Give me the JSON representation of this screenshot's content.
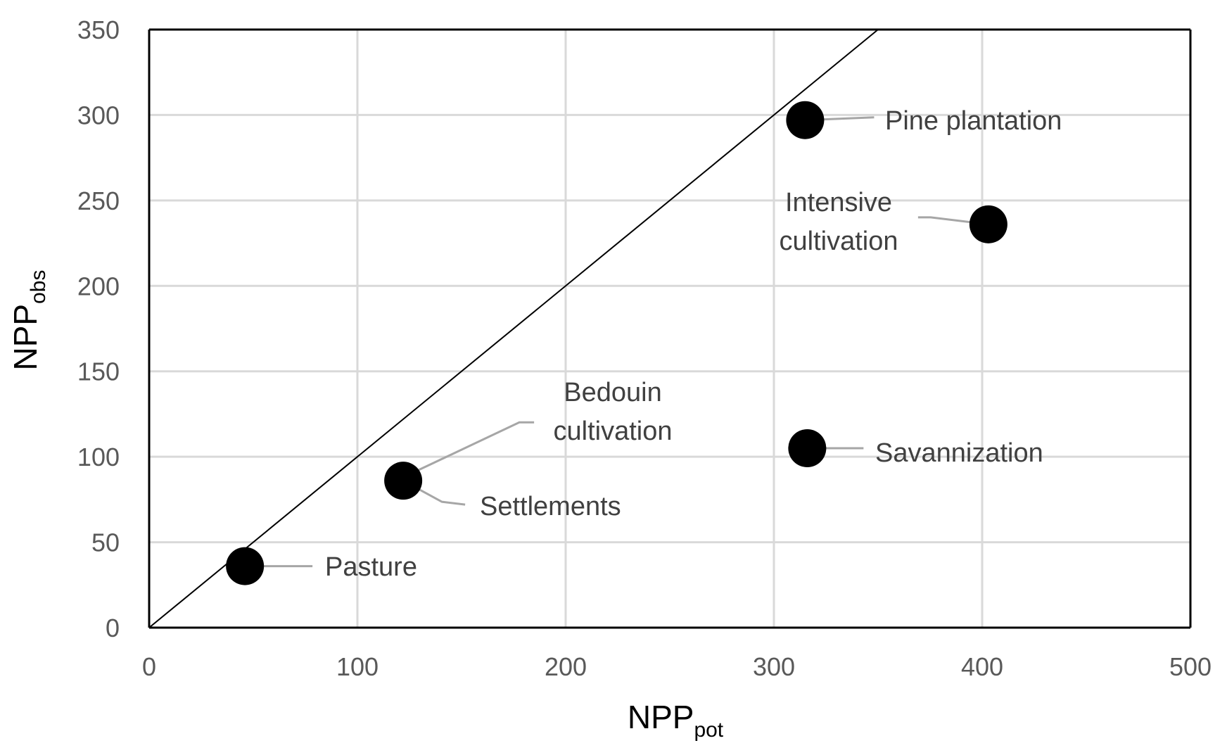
{
  "chart_data": {
    "type": "scatter",
    "xlabel": {
      "main": "NPP",
      "sub": "pot"
    },
    "ylabel": {
      "main": "NPP",
      "sub": "obs"
    },
    "xlim": [
      0,
      500
    ],
    "ylim": [
      0,
      350
    ],
    "xticks": [
      0,
      100,
      200,
      300,
      400,
      500
    ],
    "yticks": [
      0,
      50,
      100,
      150,
      200,
      250,
      300,
      350
    ],
    "grid": true,
    "reference_line": {
      "from": [
        0,
        0
      ],
      "to": [
        350,
        350
      ]
    },
    "points": [
      {
        "label": "Pasture",
        "x": 46,
        "y": 36
      },
      {
        "label": "Settlements",
        "x": 122,
        "y": 86
      },
      {
        "label": "Bedouin\ncultivation",
        "x": 122,
        "y": 88
      },
      {
        "label": "Pine plantation",
        "x": 315,
        "y": 297
      },
      {
        "label": "Intensive\ncultivation",
        "x": 403,
        "y": 236
      },
      {
        "label": "Savannization",
        "x": 316,
        "y": 105
      }
    ],
    "colors": {
      "points": "#000000",
      "grid": "#d9d9d9",
      "leader": "#a6a6a6",
      "text": "#595959"
    }
  }
}
